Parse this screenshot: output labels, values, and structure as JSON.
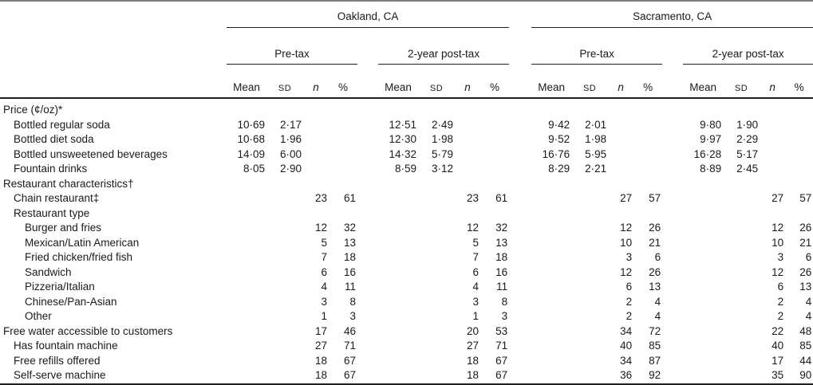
{
  "table": {
    "cities": [
      "Oakland, CA",
      "Sacramento, CA"
    ],
    "periods": [
      "Pre-tax",
      "2-year post-tax",
      "Pre-tax",
      "2-year post-tax"
    ],
    "stat_headers": [
      "Mean",
      "SD",
      "n",
      "%"
    ],
    "rows": [
      {
        "label": "Price (¢/oz)*",
        "indent": 0,
        "cells": [
          "",
          "",
          "",
          "",
          "",
          "",
          "",
          "",
          "",
          "",
          "",
          "",
          "",
          "",
          "",
          ""
        ]
      },
      {
        "label": "Bottled regular soda",
        "indent": 1,
        "cells": [
          "10·69",
          "2·17",
          "",
          "",
          "12·51",
          "2·49",
          "",
          "",
          "9·42",
          "2·01",
          "",
          "",
          "9·80",
          "1·90",
          "",
          ""
        ]
      },
      {
        "label": "Bottled diet soda",
        "indent": 1,
        "cells": [
          "10·68",
          "1·96",
          "",
          "",
          "12·30",
          "1·98",
          "",
          "",
          "9·52",
          "1·98",
          "",
          "",
          "9·97",
          "2·29",
          "",
          ""
        ]
      },
      {
        "label": "Bottled unsweetened beverages",
        "indent": 1,
        "cells": [
          "14·09",
          "6·00",
          "",
          "",
          "14·32",
          "5·79",
          "",
          "",
          "16·76",
          "5·95",
          "",
          "",
          "16·28",
          "5·17",
          "",
          ""
        ]
      },
      {
        "label": "Fountain drinks",
        "indent": 1,
        "cells": [
          "8·05",
          "2·90",
          "",
          "",
          "8·59",
          "3·12",
          "",
          "",
          "8·29",
          "2·21",
          "",
          "",
          "8·89",
          "2·45",
          "",
          ""
        ]
      },
      {
        "label": "Restaurant characteristics†",
        "indent": 0,
        "cells": [
          "",
          "",
          "",
          "",
          "",
          "",
          "",
          "",
          "",
          "",
          "",
          "",
          "",
          "",
          "",
          ""
        ]
      },
      {
        "label": "Chain restaurant‡",
        "indent": 1,
        "cells": [
          "",
          "",
          "23",
          "61",
          "",
          "",
          "23",
          "61",
          "",
          "",
          "27",
          "57",
          "",
          "",
          "27",
          "57"
        ]
      },
      {
        "label": "Restaurant type",
        "indent": 1,
        "cells": [
          "",
          "",
          "",
          "",
          "",
          "",
          "",
          "",
          "",
          "",
          "",
          "",
          "",
          "",
          "",
          ""
        ]
      },
      {
        "label": "Burger and fries",
        "indent": 2,
        "cells": [
          "",
          "",
          "12",
          "32",
          "",
          "",
          "12",
          "32",
          "",
          "",
          "12",
          "26",
          "",
          "",
          "12",
          "26"
        ]
      },
      {
        "label": "Mexican/Latin American",
        "indent": 2,
        "cells": [
          "",
          "",
          "5",
          "13",
          "",
          "",
          "5",
          "13",
          "",
          "",
          "10",
          "21",
          "",
          "",
          "10",
          "21"
        ]
      },
      {
        "label": "Fried chicken/fried fish",
        "indent": 2,
        "cells": [
          "",
          "",
          "7",
          "18",
          "",
          "",
          "7",
          "18",
          "",
          "",
          "3",
          "6",
          "",
          "",
          "3",
          "6"
        ]
      },
      {
        "label": "Sandwich",
        "indent": 2,
        "cells": [
          "",
          "",
          "6",
          "16",
          "",
          "",
          "6",
          "16",
          "",
          "",
          "12",
          "26",
          "",
          "",
          "12",
          "26"
        ]
      },
      {
        "label": "Pizzeria/Italian",
        "indent": 2,
        "cells": [
          "",
          "",
          "4",
          "11",
          "",
          "",
          "4",
          "11",
          "",
          "",
          "6",
          "13",
          "",
          "",
          "6",
          "13"
        ]
      },
      {
        "label": "Chinese/Pan-Asian",
        "indent": 2,
        "cells": [
          "",
          "",
          "3",
          "8",
          "",
          "",
          "3",
          "8",
          "",
          "",
          "2",
          "4",
          "",
          "",
          "2",
          "4"
        ]
      },
      {
        "label": "Other",
        "indent": 2,
        "cells": [
          "",
          "",
          "1",
          "3",
          "",
          "",
          "1",
          "3",
          "",
          "",
          "2",
          "4",
          "",
          "",
          "2",
          "4"
        ]
      },
      {
        "label": "Free water accessible to customers",
        "indent": 0,
        "cells": [
          "",
          "",
          "17",
          "46",
          "",
          "",
          "20",
          "53",
          "",
          "",
          "34",
          "72",
          "",
          "",
          "22",
          "48"
        ]
      },
      {
        "label": "Has fountain machine",
        "indent": 1,
        "cells": [
          "",
          "",
          "27",
          "71",
          "",
          "",
          "27",
          "71",
          "",
          "",
          "40",
          "85",
          "",
          "",
          "40",
          "85"
        ]
      },
      {
        "label": "Free refills offered",
        "indent": 1,
        "cells": [
          "",
          "",
          "18",
          "67",
          "",
          "",
          "18",
          "67",
          "",
          "",
          "34",
          "87",
          "",
          "",
          "17",
          "44"
        ]
      },
      {
        "label": "Self-serve machine",
        "indent": 1,
        "cells": [
          "",
          "",
          "18",
          "67",
          "",
          "",
          "18",
          "67",
          "",
          "",
          "36",
          "92",
          "",
          "",
          "35",
          "90"
        ]
      }
    ]
  }
}
